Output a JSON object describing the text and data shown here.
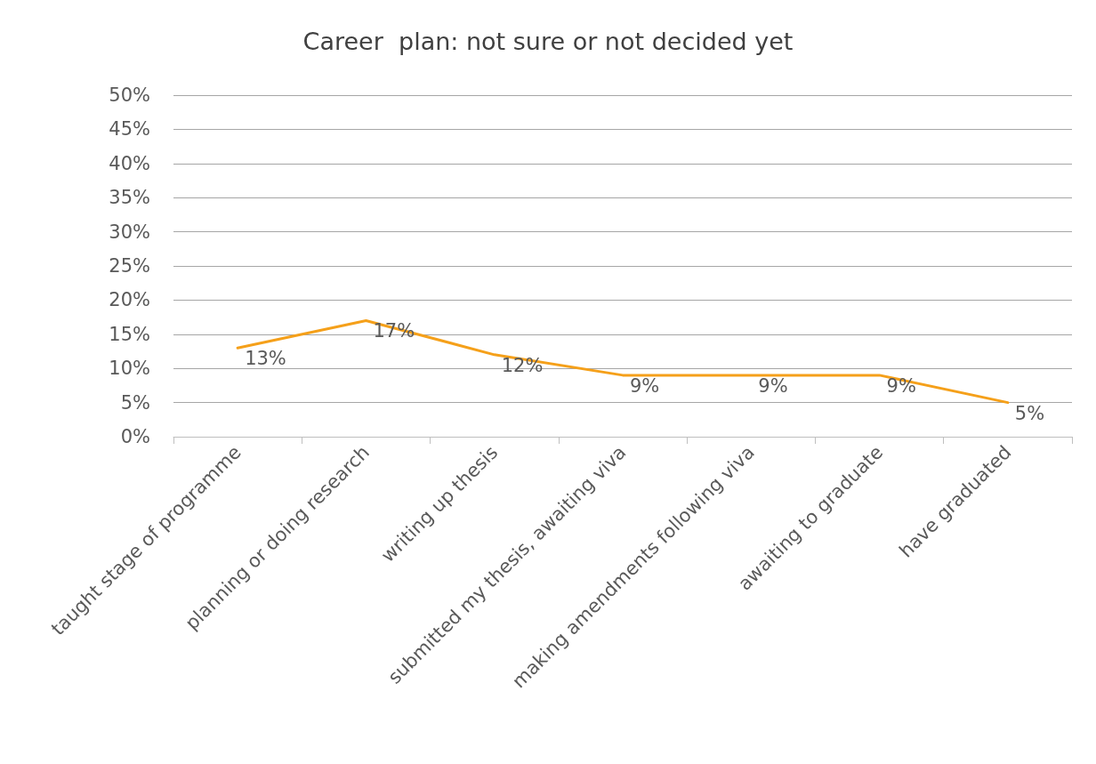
{
  "chart_data": {
    "type": "line",
    "title": "Career  plan: not sure or not decided yet",
    "categories": [
      "taught stage of programme",
      "planning or doing research",
      "writing up thesis",
      "submitted my thesis, awaiting viva",
      "making amendments following viva",
      "awaiting to graduate",
      "have graduated"
    ],
    "series": [
      {
        "color": "#f5a01a",
        "values": [
          13,
          17,
          12,
          9,
          9,
          9,
          5
        ]
      }
    ],
    "value_labels": [
      "13%",
      "17%",
      "12%",
      "9%",
      "9%",
      "9%",
      "5%"
    ],
    "ylim": [
      0,
      50
    ],
    "yticks": [
      {
        "value": 0,
        "label": "0%"
      },
      {
        "value": 5,
        "label": "5%"
      },
      {
        "value": 10,
        "label": "10%"
      },
      {
        "value": 15,
        "label": "15%"
      },
      {
        "value": 20,
        "label": "20%"
      },
      {
        "value": 25,
        "label": "25%"
      },
      {
        "value": 30,
        "label": "30%"
      },
      {
        "value": 35,
        "label": "35%"
      },
      {
        "value": 40,
        "label": "40%"
      },
      {
        "value": 45,
        "label": "45%"
      },
      {
        "value": 50,
        "label": "50%"
      }
    ],
    "grid": "y",
    "marker": "none",
    "line_style": "solid"
  }
}
